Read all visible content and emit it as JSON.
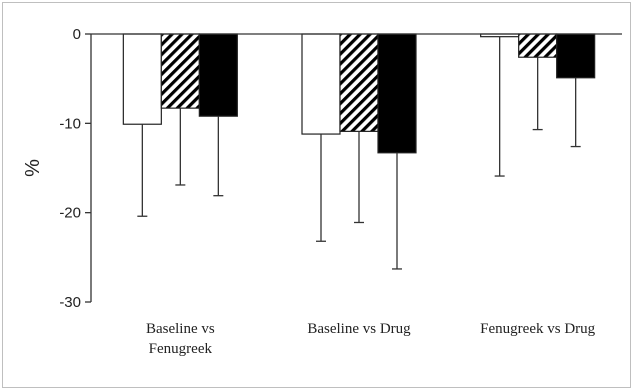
{
  "chart_data": {
    "type": "bar",
    "ylabel": "%",
    "ylim": [
      -30,
      0
    ],
    "yticks": [
      0,
      -10,
      -20,
      -30
    ],
    "grid": false,
    "categories": [
      [
        "Baseline vs",
        "Fenugreek"
      ],
      [
        "Baseline vs Drug"
      ],
      [
        "Fenugreek vs Drug"
      ]
    ],
    "series": [
      {
        "fill": "white",
        "values": [
          -10.1,
          -11.2,
          -0.3
        ],
        "errors": [
          10.3,
          12.0,
          15.6
        ]
      },
      {
        "fill": "hatched",
        "values": [
          -8.3,
          -10.9,
          -2.6
        ],
        "errors": [
          8.6,
          10.2,
          8.1
        ]
      },
      {
        "fill": "black",
        "values": [
          -9.2,
          -13.3,
          -4.9
        ],
        "errors": [
          8.9,
          13.0,
          7.7
        ]
      }
    ],
    "colors": {
      "axis": "#333333",
      "bar_edge": "#222222",
      "black_fill": "#000000"
    }
  }
}
